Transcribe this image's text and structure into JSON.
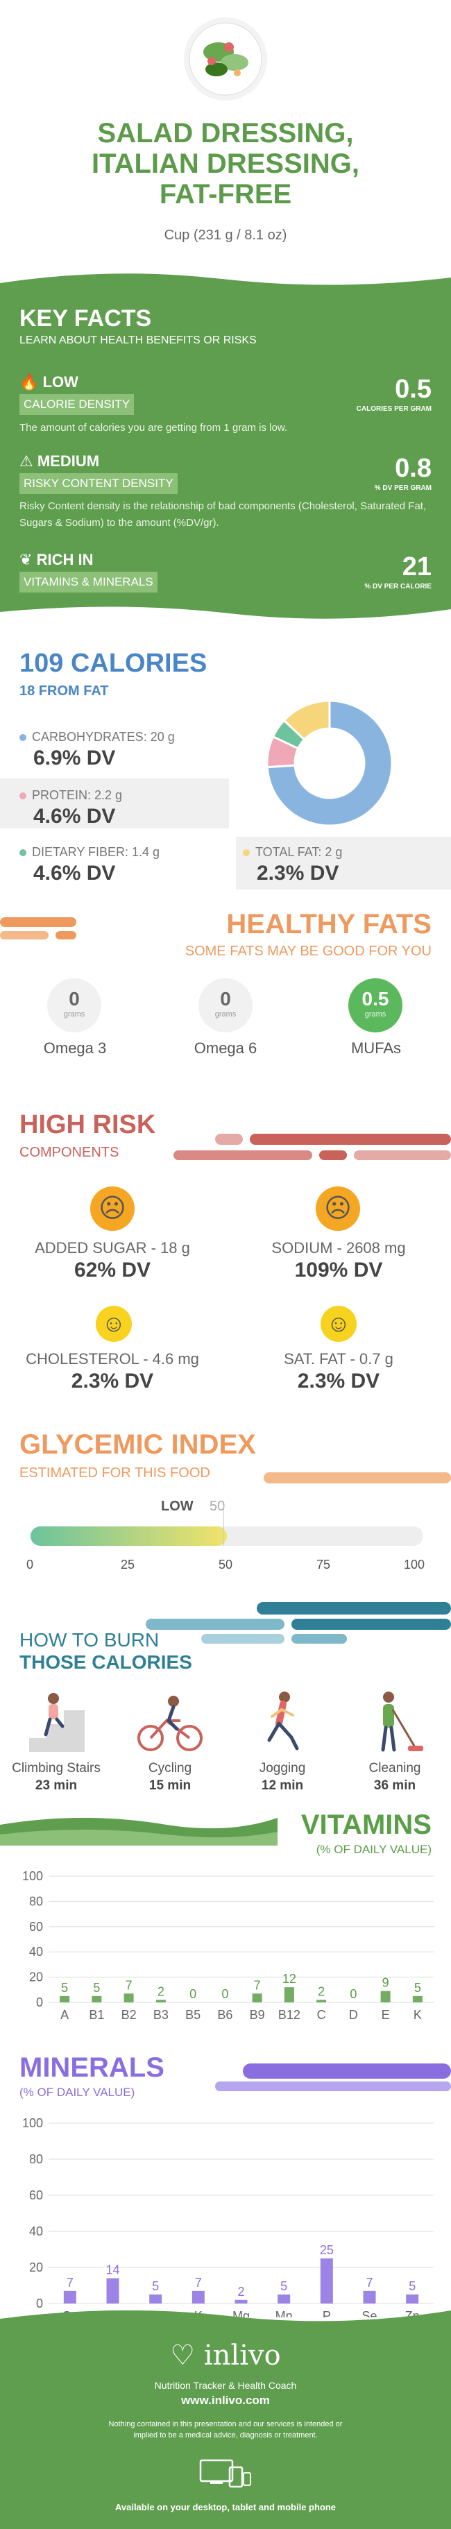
{
  "header": {
    "title_lines": [
      "SALAD DRESSING,",
      "ITALIAN DRESSING,",
      "FAT-FREE"
    ],
    "serving": "Cup (231 g / 8.1 oz)"
  },
  "key_facts": {
    "title": "KEY FACTS",
    "subtitle": "LEARN ABOUT HEALTH BENEFITS OR RISKS",
    "calorie": {
      "tag": "LOW",
      "band": "CALORIE DENSITY",
      "value": "0.5",
      "unit": "CALORIES PER GRAM",
      "desc": "The amount of calories you are getting from 1 gram is low."
    },
    "risky": {
      "tag": "MEDIUM",
      "band": "RISKY CONTENT DENSITY",
      "value": "0.8",
      "unit": "% DV PER GRAM",
      "desc": "Risky Content density is the relationship of bad components (Cholesterol, Saturated Fat, Sugars & Sodium) to the amount (%DV/gr)."
    },
    "rich": {
      "tag": "RICH  IN",
      "band": "VITAMINS & MINERALS",
      "value": "21",
      "unit": "% DV PER CALORIE"
    }
  },
  "calories": {
    "title": "109 CALORIES",
    "from_fat": "18 FROM FAT",
    "carbs": {
      "label": "CARBOHYDRATES: 20 g",
      "dv": "6.9% DV"
    },
    "protein": {
      "label": "PROTEIN: 2.2 g",
      "dv": "4.6% DV"
    },
    "fiber": {
      "label": "DIETARY FIBER: 1.4 g",
      "dv": "4.6% DV"
    },
    "fat": {
      "label": "TOTAL FAT: 2 g",
      "dv": "2.3% DV"
    },
    "donut": [
      {
        "name": "carbs",
        "value": 0.74,
        "color": "#8ab4e0"
      },
      {
        "name": "protein",
        "value": 0.08,
        "color": "#f0a7b8"
      },
      {
        "name": "fiber",
        "value": 0.05,
        "color": "#6cc39e"
      },
      {
        "name": "fat",
        "value": 0.13,
        "color": "#f7d57a"
      }
    ]
  },
  "healthy_fats": {
    "title": "HEALTHY FATS",
    "subtitle": "SOME FATS MAY BE GOOD FOR YOU",
    "items": [
      {
        "value": "0",
        "unit": "grams",
        "label": "Omega 3"
      },
      {
        "value": "0",
        "unit": "grams",
        "label": "Omega 6"
      },
      {
        "value": "0.5",
        "unit": "grams",
        "label": "MUFAs"
      }
    ]
  },
  "high_risk": {
    "title": "HIGH RISK",
    "subtitle": "COMPONENTS",
    "items": [
      {
        "label": "ADDED SUGAR - 18 g",
        "dv": "62% DV",
        "face": "☹",
        "color": "#f5a623"
      },
      {
        "label": "SODIUM - 2608 mg",
        "dv": "109% DV",
        "face": "☹",
        "color": "#f5a623"
      },
      {
        "label": "CHOLESTEROL - 4.6 mg",
        "dv": "2.3% DV",
        "face": "☺",
        "color": "#f7d21f"
      },
      {
        "label": "SAT. FAT - 0.7 g",
        "dv": "2.3% DV",
        "face": "☺",
        "color": "#f7d21f"
      }
    ]
  },
  "glycemic": {
    "title": "GLYCEMIC INDEX",
    "subtitle": "ESTIMATED FOR THIS FOOD",
    "level": "LOW",
    "value": "50",
    "scale": [
      "0",
      "25",
      "50",
      "75",
      "100"
    ]
  },
  "burn": {
    "title1": "HOW TO BURN",
    "title2": "THOSE CALORIES",
    "items": [
      {
        "label": "Climbing Stairs",
        "minutes": "23 min"
      },
      {
        "label": "Cycling",
        "minutes": "15 min"
      },
      {
        "label": "Jogging",
        "minutes": "12 min"
      },
      {
        "label": "Cleaning",
        "minutes": "36 min"
      }
    ]
  },
  "chart_data": [
    {
      "type": "bar",
      "title": "VITAMINS",
      "subtitle": "(% OF DAILY VALUE)",
      "categories": [
        "A",
        "B1",
        "B2",
        "B3",
        "B5",
        "B6",
        "B9",
        "B12",
        "C",
        "D",
        "E",
        "K"
      ],
      "values": [
        5,
        5,
        7,
        2,
        0,
        0,
        7,
        12,
        2,
        0,
        9,
        5
      ],
      "ylim": [
        0,
        100
      ],
      "yticks": [
        "0",
        "20",
        "40",
        "60",
        "80",
        "100"
      ],
      "color": "#5a9e47"
    },
    {
      "type": "bar",
      "title": "MINERALS",
      "subtitle": "(% OF DAILY VALUE)",
      "categories": [
        "Ca",
        "Cu",
        "Fe",
        "K",
        "Mg",
        "Mn",
        "P",
        "Se",
        "Zn"
      ],
      "values": [
        7,
        14,
        5,
        7,
        2,
        5,
        25,
        7,
        5
      ],
      "ylim": [
        0,
        100
      ],
      "yticks": [
        "0",
        "20",
        "40",
        "60",
        "80",
        "100"
      ],
      "color": "#8a6ee0"
    }
  ],
  "footer": {
    "brand": "inlivo",
    "tagline": "Nutrition Tracker & Health Coach",
    "url": "www.inlivo.com",
    "disclaimer": "Nothing contained in this presentation and our services is intended or implied to be a medical advice, diagnosis or treatment.",
    "available": "Available on your desktop, tablet and mobile phone"
  }
}
